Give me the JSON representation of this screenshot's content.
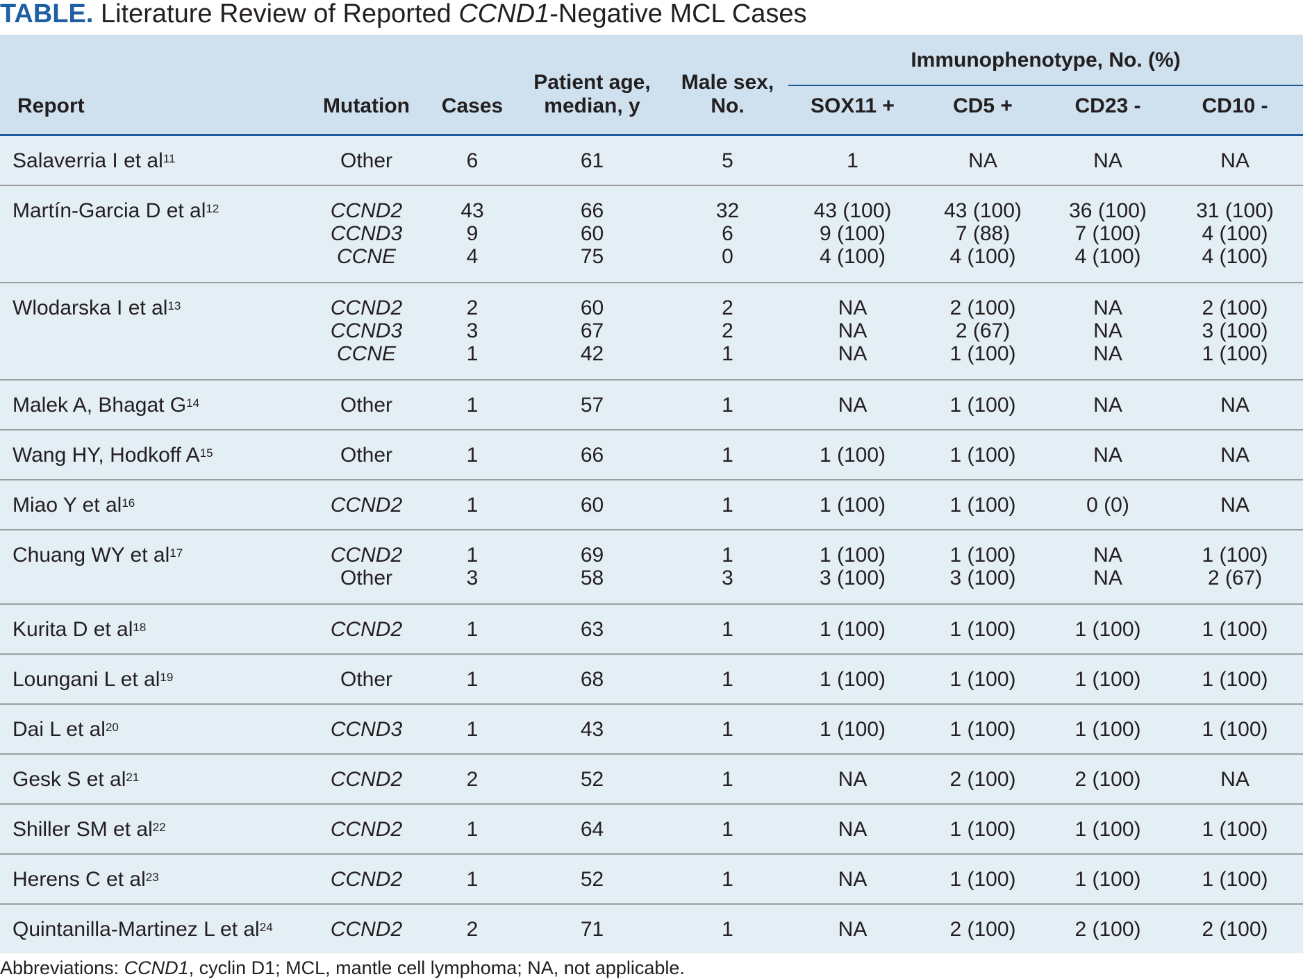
{
  "title": {
    "label": "TABLE.",
    "prefix": "Literature Review of Reported",
    "gene": "CCND1",
    "suffix": "-Negative MCL Cases"
  },
  "header": {
    "report": "Report",
    "mutation": "Mutation",
    "cases": "Cases",
    "age": [
      "Patient age,",
      "median, y"
    ],
    "male": [
      "Male sex,",
      "No."
    ],
    "group": "Immunophenotype, No. (%)",
    "sox11": "SOX11 +",
    "cd5": "CD5 +",
    "cd23": "CD23 -",
    "cd10": "CD10 -"
  },
  "rows": [
    {
      "report": "Salaverria I et al",
      "ref": "11",
      "mutation": [
        "Other"
      ],
      "cases": [
        "6"
      ],
      "age": [
        "61"
      ],
      "male": [
        "5"
      ],
      "sox11": [
        "1"
      ],
      "cd5": [
        "NA"
      ],
      "cd23": [
        "NA"
      ],
      "cd10": [
        "NA"
      ]
    },
    {
      "report": "Martín-Garcia D et al",
      "ref": "12",
      "mutation": [
        "CCND2",
        "CCND3",
        "CCNE"
      ],
      "cases": [
        "43",
        "9",
        "4"
      ],
      "age": [
        "66",
        "60",
        "75"
      ],
      "male": [
        "32",
        "6",
        "0"
      ],
      "sox11": [
        "43 (100)",
        "9 (100)",
        "4 (100)"
      ],
      "cd5": [
        "43 (100)",
        "7 (88)",
        "4 (100)"
      ],
      "cd23": [
        "36 (100)",
        "7 (100)",
        "4 (100)"
      ],
      "cd10": [
        "31 (100)",
        "4 (100)",
        "4 (100)"
      ]
    },
    {
      "report": "Wlodarska I et al",
      "ref": "13",
      "mutation": [
        "CCND2",
        "CCND3",
        "CCNE"
      ],
      "cases": [
        "2",
        "3",
        "1"
      ],
      "age": [
        "60",
        "67",
        "42"
      ],
      "male": [
        "2",
        "2",
        "1"
      ],
      "sox11": [
        "NA",
        "NA",
        "NA"
      ],
      "cd5": [
        "2 (100)",
        "2 (67)",
        "1 (100)"
      ],
      "cd23": [
        "NA",
        "NA",
        "NA"
      ],
      "cd10": [
        "2 (100)",
        "3 (100)",
        "1 (100)"
      ]
    },
    {
      "report": "Malek A, Bhagat G",
      "ref": "14",
      "mutation": [
        "Other"
      ],
      "cases": [
        "1"
      ],
      "age": [
        "57"
      ],
      "male": [
        "1"
      ],
      "sox11": [
        "NA"
      ],
      "cd5": [
        "1 (100)"
      ],
      "cd23": [
        "NA"
      ],
      "cd10": [
        "NA"
      ]
    },
    {
      "report": "Wang HY, Hodkoff A",
      "ref": "15",
      "mutation": [
        "Other"
      ],
      "cases": [
        "1"
      ],
      "age": [
        "66"
      ],
      "male": [
        "1"
      ],
      "sox11": [
        "1 (100)"
      ],
      "cd5": [
        "1 (100)"
      ],
      "cd23": [
        "NA"
      ],
      "cd10": [
        "NA"
      ]
    },
    {
      "report": "Miao Y et al",
      "ref": "16",
      "mutation": [
        "CCND2"
      ],
      "cases": [
        "1"
      ],
      "age": [
        "60"
      ],
      "male": [
        "1"
      ],
      "sox11": [
        "1 (100)"
      ],
      "cd5": [
        "1 (100)"
      ],
      "cd23": [
        "0 (0)"
      ],
      "cd10": [
        "NA"
      ]
    },
    {
      "report": "Chuang WY et al",
      "ref": "17",
      "mutation": [
        "CCND2",
        "Other"
      ],
      "cases": [
        "1",
        "3"
      ],
      "age": [
        "69",
        "58"
      ],
      "male": [
        "1",
        "3"
      ],
      "sox11": [
        "1 (100)",
        "3 (100)"
      ],
      "cd5": [
        "1 (100)",
        "3 (100)"
      ],
      "cd23": [
        "NA",
        "NA"
      ],
      "cd10": [
        "1 (100)",
        "2 (67)"
      ]
    },
    {
      "report": "Kurita D et al",
      "ref": "18",
      "mutation": [
        "CCND2"
      ],
      "cases": [
        "1"
      ],
      "age": [
        "63"
      ],
      "male": [
        "1"
      ],
      "sox11": [
        "1 (100)"
      ],
      "cd5": [
        "1 (100)"
      ],
      "cd23": [
        "1 (100)"
      ],
      "cd10": [
        "1 (100)"
      ]
    },
    {
      "report": "Loungani L et al",
      "ref": "19",
      "mutation": [
        "Other"
      ],
      "cases": [
        "1"
      ],
      "age": [
        "68"
      ],
      "male": [
        "1"
      ],
      "sox11": [
        "1 (100)"
      ],
      "cd5": [
        "1 (100)"
      ],
      "cd23": [
        "1 (100)"
      ],
      "cd10": [
        "1 (100)"
      ]
    },
    {
      "report": "Dai L et al",
      "ref": "20",
      "mutation": [
        "CCND3"
      ],
      "cases": [
        "1"
      ],
      "age": [
        "43"
      ],
      "male": [
        "1"
      ],
      "sox11": [
        "1 (100)"
      ],
      "cd5": [
        "1 (100)"
      ],
      "cd23": [
        "1 (100)"
      ],
      "cd10": [
        "1 (100)"
      ]
    },
    {
      "report": "Gesk S et al",
      "ref": "21",
      "mutation": [
        "CCND2"
      ],
      "cases": [
        "2"
      ],
      "age": [
        "52"
      ],
      "male": [
        "1"
      ],
      "sox11": [
        "NA"
      ],
      "cd5": [
        "2 (100)"
      ],
      "cd23": [
        "2 (100)"
      ],
      "cd10": [
        "NA"
      ]
    },
    {
      "report": "Shiller SM et al",
      "ref": "22",
      "mutation": [
        "CCND2"
      ],
      "cases": [
        "1"
      ],
      "age": [
        "64"
      ],
      "male": [
        "1"
      ],
      "sox11": [
        "NA"
      ],
      "cd5": [
        "1 (100)"
      ],
      "cd23": [
        "1 (100)"
      ],
      "cd10": [
        "1 (100)"
      ]
    },
    {
      "report": "Herens C et al",
      "ref": "23",
      "mutation": [
        "CCND2"
      ],
      "cases": [
        "1"
      ],
      "age": [
        "52"
      ],
      "male": [
        "1"
      ],
      "sox11": [
        "NA"
      ],
      "cd5": [
        "1 (100)"
      ],
      "cd23": [
        "1 (100)"
      ],
      "cd10": [
        "1 (100)"
      ]
    },
    {
      "report": "Quintanilla-Martinez L et al",
      "ref": "24",
      "mutation": [
        "CCND2"
      ],
      "cases": [
        "2"
      ],
      "age": [
        "71"
      ],
      "male": [
        "1"
      ],
      "sox11": [
        "NA"
      ],
      "cd5": [
        "2 (100)"
      ],
      "cd23": [
        "2 (100)"
      ],
      "cd10": [
        "2 (100)"
      ]
    }
  ],
  "footnote": {
    "prefix": "Abbreviations: ",
    "gene": "CCND1",
    "suffix": ", cyclin D1; MCL, mantle cell lymphoma; NA, not applicable."
  }
}
